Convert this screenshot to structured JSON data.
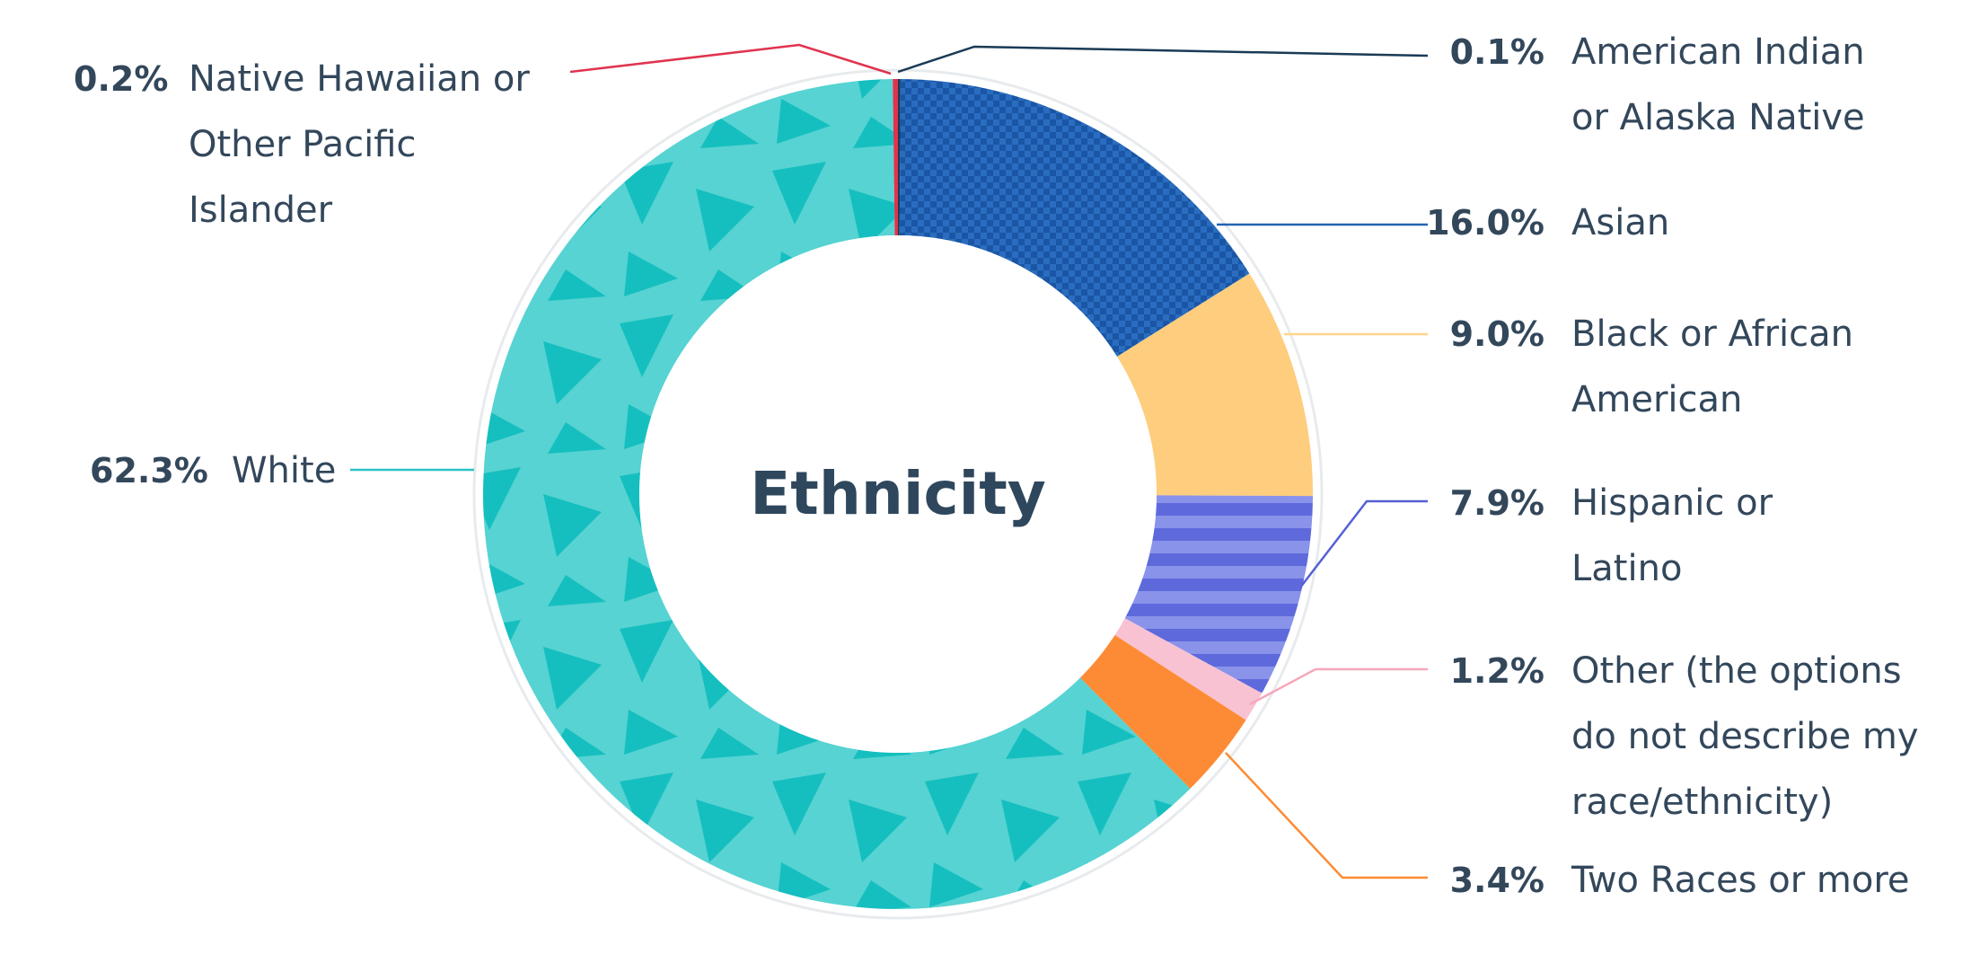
{
  "chart_data": {
    "type": "pie",
    "variant": "donut",
    "title": "Ethnicity",
    "slices": [
      {
        "label": "American Indian or Alaska Native",
        "value": 0.1,
        "display": "0.1%",
        "color": "#1a3a55",
        "pattern": "solid"
      },
      {
        "label": "Asian",
        "value": 16.0,
        "display": "16.0%",
        "color": "#2262b3",
        "pattern": "checker"
      },
      {
        "label": "Black or African American",
        "value": 9.0,
        "display": "9.0%",
        "color": "#fecd7d",
        "pattern": "solid"
      },
      {
        "label": "Hispanic or Latino",
        "value": 7.9,
        "display": "7.9%",
        "color": "#6672e0",
        "pattern": "stripes"
      },
      {
        "label": "Other (the options do not describe my race/ethnicity)",
        "value": 1.2,
        "display": "1.2%",
        "color": "#f9c2d2",
        "pattern": "solid"
      },
      {
        "label": "Two Races or more",
        "value": 3.4,
        "display": "3.4%",
        "color": "#fd8b35",
        "pattern": "solid"
      },
      {
        "label": "White",
        "value": 62.3,
        "display": "62.3%",
        "color": "#55d2d1",
        "pattern": "triangles"
      },
      {
        "label": "Native Hawaiian or Other Pacific Islander",
        "value": 0.2,
        "display": "0.2%",
        "color": "#e0334e",
        "pattern": "solid"
      }
    ],
    "leader_colors": {
      "American Indian or Alaska Native": "#1a3a55",
      "Asian": "#2262b3",
      "Black or African American": "#fdd58b",
      "Hispanic or Latino": "#5561d4",
      "Other (the options do not describe my race/ethnicity)": "#f6a7bb",
      "Two Races or more": "#fd8b35",
      "White": "#2cc2c4",
      "Native Hawaiian or Other Pacific Islander": "#e0334e"
    }
  },
  "labels": {
    "american_indian": {
      "pct": "0.1%",
      "lines": [
        "American Indian",
        "or Alaska Native"
      ]
    },
    "asian": {
      "pct": "16.0%",
      "lines": [
        "Asian"
      ]
    },
    "black": {
      "pct": "9.0%",
      "lines": [
        "Black or African",
        "American"
      ]
    },
    "hispanic": {
      "pct": "7.9%",
      "lines": [
        "Hispanic or",
        "Latino"
      ]
    },
    "other": {
      "pct": "1.2%",
      "lines": [
        "Other (the options",
        "do not describe my",
        "race/ethnicity)"
      ]
    },
    "two_races": {
      "pct": "3.4%",
      "lines": [
        "Two Races or more"
      ]
    },
    "white": {
      "pct": "62.3%",
      "lines": [
        "White"
      ]
    },
    "native_hawaiian": {
      "pct": "0.2%",
      "lines": [
        "Native Hawaiian or",
        "Other Pacific",
        "Islander"
      ]
    }
  }
}
